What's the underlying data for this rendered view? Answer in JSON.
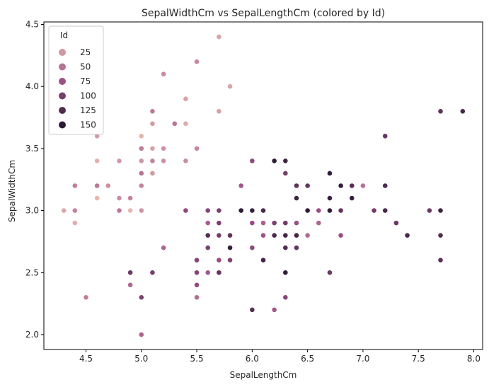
{
  "chart_data": {
    "type": "scatter",
    "title": "SepalWidthCm vs SepalLengthCm (colored by Id)",
    "xlabel": "SepalLengthCm",
    "ylabel": "SepalWidthCm",
    "xlim": [
      4.12,
      8.08
    ],
    "ylim": [
      1.88,
      4.52
    ],
    "xticks": [
      "4.5",
      "5.0",
      "5.5",
      "6.0",
      "6.5",
      "7.0",
      "7.5",
      "8.0"
    ],
    "yticks": [
      "2.0",
      "2.5",
      "3.0",
      "3.5",
      "4.0",
      "4.5"
    ],
    "grid": false,
    "legend": {
      "title": "Id",
      "position": "top-left",
      "entries": [
        {
          "label": "25",
          "value": 25
        },
        {
          "label": "50",
          "value": 50
        },
        {
          "label": "75",
          "value": 75
        },
        {
          "label": "100",
          "value": 100
        },
        {
          "label": "125",
          "value": 125
        },
        {
          "label": "150",
          "value": 150
        }
      ]
    },
    "hue_colormap": {
      "low": "#eab9b0",
      "mid": "#9c4f86",
      "high": "#2b1a35",
      "range": [
        1,
        150
      ]
    },
    "points": [
      {
        "id": 1,
        "x": 5.1,
        "y": 3.5
      },
      {
        "id": 2,
        "x": 4.9,
        "y": 3.0
      },
      {
        "id": 3,
        "x": 4.7,
        "y": 3.2
      },
      {
        "id": 4,
        "x": 4.6,
        "y": 3.1
      },
      {
        "id": 5,
        "x": 5.0,
        "y": 3.6
      },
      {
        "id": 6,
        "x": 5.4,
        "y": 3.9
      },
      {
        "id": 7,
        "x": 4.6,
        "y": 3.4
      },
      {
        "id": 8,
        "x": 5.0,
        "y": 3.4
      },
      {
        "id": 9,
        "x": 4.4,
        "y": 2.9
      },
      {
        "id": 10,
        "x": 4.9,
        "y": 3.1
      },
      {
        "id": 11,
        "x": 5.4,
        "y": 3.7
      },
      {
        "id": 12,
        "x": 4.8,
        "y": 3.4
      },
      {
        "id": 13,
        "x": 4.8,
        "y": 3.0
      },
      {
        "id": 14,
        "x": 4.3,
        "y": 3.0
      },
      {
        "id": 15,
        "x": 5.8,
        "y": 4.0
      },
      {
        "id": 16,
        "x": 5.7,
        "y": 4.4
      },
      {
        "id": 17,
        "x": 5.4,
        "y": 3.9
      },
      {
        "id": 18,
        "x": 5.1,
        "y": 3.5
      },
      {
        "id": 19,
        "x": 5.7,
        "y": 3.8
      },
      {
        "id": 20,
        "x": 5.1,
        "y": 3.8
      },
      {
        "id": 21,
        "x": 5.4,
        "y": 3.4
      },
      {
        "id": 22,
        "x": 5.1,
        "y": 3.7
      },
      {
        "id": 23,
        "x": 4.6,
        "y": 3.6
      },
      {
        "id": 24,
        "x": 5.1,
        "y": 3.3
      },
      {
        "id": 25,
        "x": 4.8,
        "y": 3.4
      },
      {
        "id": 26,
        "x": 5.0,
        "y": 3.0
      },
      {
        "id": 27,
        "x": 5.0,
        "y": 3.4
      },
      {
        "id": 28,
        "x": 5.2,
        "y": 3.5
      },
      {
        "id": 29,
        "x": 5.2,
        "y": 3.4
      },
      {
        "id": 30,
        "x": 4.7,
        "y": 3.2
      },
      {
        "id": 31,
        "x": 4.8,
        "y": 3.1
      },
      {
        "id": 32,
        "x": 5.4,
        "y": 3.4
      },
      {
        "id": 33,
        "x": 5.2,
        "y": 4.1
      },
      {
        "id": 34,
        "x": 5.5,
        "y": 4.2
      },
      {
        "id": 35,
        "x": 4.9,
        "y": 3.1
      },
      {
        "id": 36,
        "x": 5.0,
        "y": 3.2
      },
      {
        "id": 37,
        "x": 5.5,
        "y": 3.5
      },
      {
        "id": 38,
        "x": 4.9,
        "y": 3.1
      },
      {
        "id": 39,
        "x": 4.4,
        "y": 3.0
      },
      {
        "id": 40,
        "x": 5.1,
        "y": 3.4
      },
      {
        "id": 41,
        "x": 5.0,
        "y": 3.5
      },
      {
        "id": 42,
        "x": 4.5,
        "y": 2.3
      },
      {
        "id": 43,
        "x": 4.4,
        "y": 3.2
      },
      {
        "id": 44,
        "x": 5.0,
        "y": 3.5
      },
      {
        "id": 45,
        "x": 5.1,
        "y": 3.8
      },
      {
        "id": 46,
        "x": 4.8,
        "y": 3.0
      },
      {
        "id": 47,
        "x": 5.1,
        "y": 3.8
      },
      {
        "id": 48,
        "x": 4.6,
        "y": 3.2
      },
      {
        "id": 49,
        "x": 5.3,
        "y": 3.7
      },
      {
        "id": 50,
        "x": 5.0,
        "y": 3.3
      },
      {
        "id": 51,
        "x": 7.0,
        "y": 3.2
      },
      {
        "id": 52,
        "x": 6.4,
        "y": 3.2
      },
      {
        "id": 53,
        "x": 6.9,
        "y": 3.1
      },
      {
        "id": 54,
        "x": 5.5,
        "y": 2.3
      },
      {
        "id": 55,
        "x": 6.5,
        "y": 2.8
      },
      {
        "id": 56,
        "x": 5.7,
        "y": 2.8
      },
      {
        "id": 57,
        "x": 6.3,
        "y": 3.3
      },
      {
        "id": 58,
        "x": 4.9,
        "y": 2.4
      },
      {
        "id": 59,
        "x": 6.6,
        "y": 2.9
      },
      {
        "id": 60,
        "x": 5.2,
        "y": 2.7
      },
      {
        "id": 61,
        "x": 5.0,
        "y": 2.0
      },
      {
        "id": 62,
        "x": 5.9,
        "y": 3.0
      },
      {
        "id": 63,
        "x": 6.0,
        "y": 2.2
      },
      {
        "id": 64,
        "x": 6.1,
        "y": 2.9
      },
      {
        "id": 65,
        "x": 5.6,
        "y": 2.9
      },
      {
        "id": 66,
        "x": 6.7,
        "y": 3.1
      },
      {
        "id": 67,
        "x": 5.6,
        "y": 3.0
      },
      {
        "id": 68,
        "x": 5.8,
        "y": 2.7
      },
      {
        "id": 69,
        "x": 6.2,
        "y": 2.2
      },
      {
        "id": 70,
        "x": 5.6,
        "y": 2.5
      },
      {
        "id": 71,
        "x": 5.9,
        "y": 3.2
      },
      {
        "id": 72,
        "x": 6.1,
        "y": 2.8
      },
      {
        "id": 73,
        "x": 6.3,
        "y": 2.5
      },
      {
        "id": 74,
        "x": 6.1,
        "y": 2.8
      },
      {
        "id": 75,
        "x": 6.4,
        "y": 2.9
      },
      {
        "id": 76,
        "x": 6.6,
        "y": 3.0
      },
      {
        "id": 77,
        "x": 6.8,
        "y": 2.8
      },
      {
        "id": 78,
        "x": 6.7,
        "y": 3.0
      },
      {
        "id": 79,
        "x": 6.0,
        "y": 2.9
      },
      {
        "id": 80,
        "x": 5.7,
        "y": 2.6
      },
      {
        "id": 81,
        "x": 5.5,
        "y": 2.4
      },
      {
        "id": 82,
        "x": 5.5,
        "y": 2.4
      },
      {
        "id": 83,
        "x": 5.8,
        "y": 2.7
      },
      {
        "id": 84,
        "x": 6.0,
        "y": 2.7
      },
      {
        "id": 85,
        "x": 5.4,
        "y": 3.0
      },
      {
        "id": 86,
        "x": 6.0,
        "y": 3.4
      },
      {
        "id": 87,
        "x": 6.7,
        "y": 3.1
      },
      {
        "id": 88,
        "x": 6.3,
        "y": 2.3
      },
      {
        "id": 89,
        "x": 5.6,
        "y": 3.0
      },
      {
        "id": 90,
        "x": 5.5,
        "y": 2.5
      },
      {
        "id": 91,
        "x": 5.5,
        "y": 2.6
      },
      {
        "id": 92,
        "x": 6.1,
        "y": 3.0
      },
      {
        "id": 93,
        "x": 5.8,
        "y": 2.6
      },
      {
        "id": 94,
        "x": 5.0,
        "y": 2.3
      },
      {
        "id": 95,
        "x": 5.6,
        "y": 2.7
      },
      {
        "id": 96,
        "x": 5.7,
        "y": 3.0
      },
      {
        "id": 97,
        "x": 5.7,
        "y": 2.9
      },
      {
        "id": 98,
        "x": 6.2,
        "y": 2.9
      },
      {
        "id": 99,
        "x": 5.1,
        "y": 2.5
      },
      {
        "id": 100,
        "x": 5.7,
        "y": 2.8
      },
      {
        "id": 101,
        "x": 6.3,
        "y": 3.3
      },
      {
        "id": 102,
        "x": 5.8,
        "y": 2.7
      },
      {
        "id": 103,
        "x": 7.1,
        "y": 3.0
      },
      {
        "id": 104,
        "x": 6.3,
        "y": 2.9
      },
      {
        "id": 105,
        "x": 6.5,
        "y": 3.0
      },
      {
        "id": 106,
        "x": 7.6,
        "y": 3.0
      },
      {
        "id": 107,
        "x": 4.9,
        "y": 2.5
      },
      {
        "id": 108,
        "x": 7.3,
        "y": 2.9
      },
      {
        "id": 109,
        "x": 6.7,
        "y": 2.5
      },
      {
        "id": 110,
        "x": 7.2,
        "y": 3.6
      },
      {
        "id": 111,
        "x": 6.5,
        "y": 3.2
      },
      {
        "id": 112,
        "x": 6.4,
        "y": 2.7
      },
      {
        "id": 113,
        "x": 6.8,
        "y": 3.0
      },
      {
        "id": 114,
        "x": 5.7,
        "y": 2.5
      },
      {
        "id": 115,
        "x": 5.8,
        "y": 2.8
      },
      {
        "id": 116,
        "x": 6.4,
        "y": 3.2
      },
      {
        "id": 117,
        "x": 6.5,
        "y": 3.0
      },
      {
        "id": 118,
        "x": 7.7,
        "y": 3.8
      },
      {
        "id": 119,
        "x": 7.7,
        "y": 2.6
      },
      {
        "id": 120,
        "x": 6.0,
        "y": 2.2
      },
      {
        "id": 121,
        "x": 6.9,
        "y": 3.2
      },
      {
        "id": 122,
        "x": 5.6,
        "y": 2.8
      },
      {
        "id": 123,
        "x": 7.7,
        "y": 2.8
      },
      {
        "id": 124,
        "x": 6.3,
        "y": 2.7
      },
      {
        "id": 125,
        "x": 6.7,
        "y": 3.3
      },
      {
        "id": 126,
        "x": 7.2,
        "y": 3.2
      },
      {
        "id": 127,
        "x": 6.2,
        "y": 2.8
      },
      {
        "id": 128,
        "x": 6.1,
        "y": 3.0
      },
      {
        "id": 129,
        "x": 6.4,
        "y": 2.8
      },
      {
        "id": 130,
        "x": 7.2,
        "y": 3.0
      },
      {
        "id": 131,
        "x": 7.4,
        "y": 2.8
      },
      {
        "id": 132,
        "x": 7.9,
        "y": 3.8
      },
      {
        "id": 133,
        "x": 6.4,
        "y": 2.8
      },
      {
        "id": 134,
        "x": 6.3,
        "y": 2.8
      },
      {
        "id": 135,
        "x": 6.1,
        "y": 2.6
      },
      {
        "id": 136,
        "x": 7.7,
        "y": 3.0
      },
      {
        "id": 137,
        "x": 6.3,
        "y": 3.4
      },
      {
        "id": 138,
        "x": 6.4,
        "y": 3.1
      },
      {
        "id": 139,
        "x": 6.0,
        "y": 3.0
      },
      {
        "id": 140,
        "x": 6.9,
        "y": 3.1
      },
      {
        "id": 141,
        "x": 6.7,
        "y": 3.1
      },
      {
        "id": 142,
        "x": 6.9,
        "y": 3.1
      },
      {
        "id": 143,
        "x": 5.8,
        "y": 2.7
      },
      {
        "id": 144,
        "x": 6.8,
        "y": 3.2
      },
      {
        "id": 145,
        "x": 6.7,
        "y": 3.3
      },
      {
        "id": 146,
        "x": 6.7,
        "y": 3.0
      },
      {
        "id": 147,
        "x": 6.3,
        "y": 2.5
      },
      {
        "id": 148,
        "x": 6.5,
        "y": 3.0
      },
      {
        "id": 149,
        "x": 6.2,
        "y": 3.4
      },
      {
        "id": 150,
        "x": 5.9,
        "y": 3.0
      }
    ]
  }
}
